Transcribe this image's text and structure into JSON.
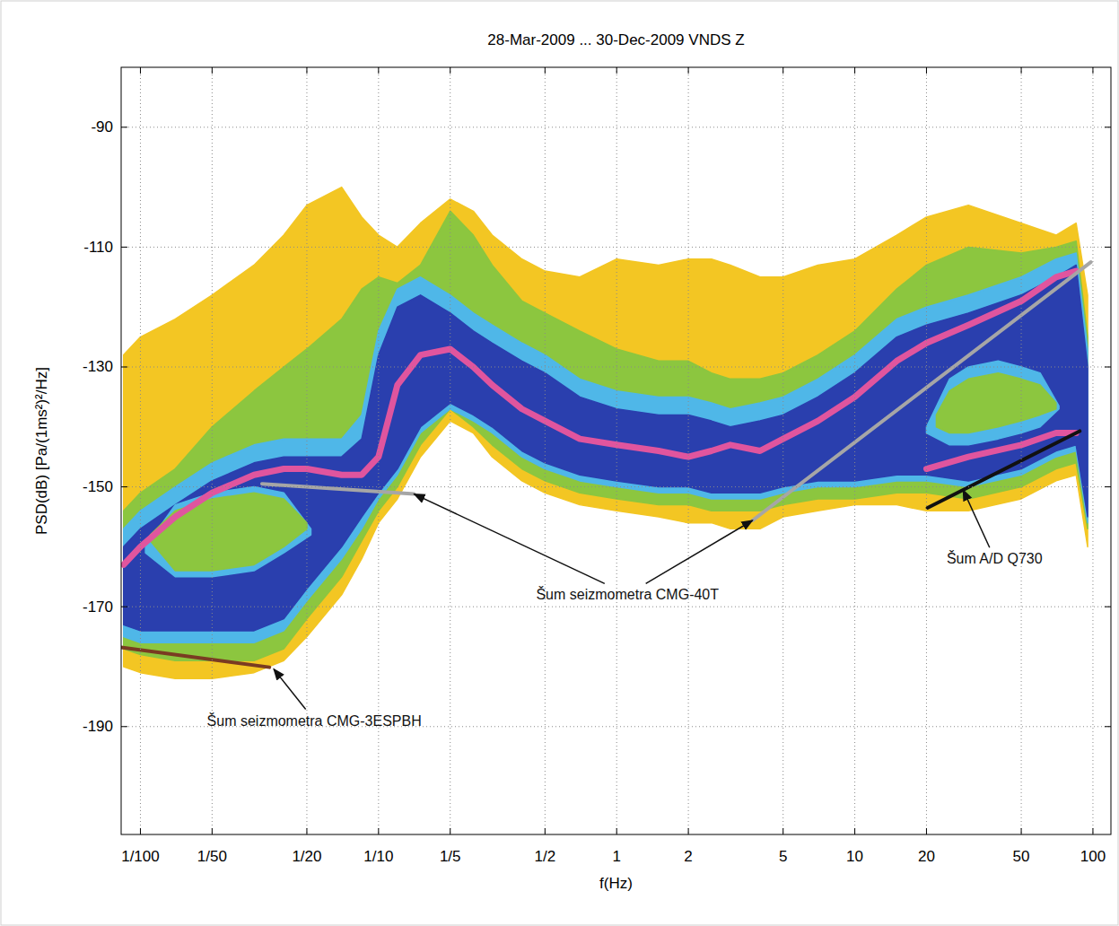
{
  "chart_data": {
    "type": "band",
    "title": "28-Mar-2009 ... 30-Dec-2009  VNDS  Z",
    "x_label": "f(Hz)",
    "y_label": "PSD(dB) [Pa/(1ms²)²/Hz]",
    "log": "x",
    "grid": true,
    "xlim": [
      0.0083,
      119
    ],
    "ylim": [
      -208,
      -80
    ],
    "xticks": [
      {
        "value": 0.01,
        "label": "1/100"
      },
      {
        "value": 0.02,
        "label": "1/50"
      },
      {
        "value": 0.05,
        "label": "1/20"
      },
      {
        "value": 0.1,
        "label": "1/10"
      },
      {
        "value": 0.2,
        "label": "1/5"
      },
      {
        "value": 0.5,
        "label": "1/2"
      },
      1,
      2,
      5,
      10,
      20,
      50,
      100
    ],
    "yticks": [
      -190,
      -170,
      -150,
      -130,
      -110,
      -90
    ],
    "x": [
      0.0085,
      0.01,
      0.014,
      0.02,
      0.03,
      0.04,
      0.05,
      0.07,
      0.085,
      0.1,
      0.12,
      0.15,
      0.2,
      0.25,
      0.3,
      0.4,
      0.5,
      0.7,
      1,
      1.5,
      2,
      2.5,
      3,
      4,
      5,
      7,
      10,
      15,
      20,
      30,
      50,
      70,
      85,
      95
    ],
    "series": [
      {
        "type": "band",
        "color": "#f3c623",
        "values": [
          -128,
          -125,
          -122,
          -118,
          -113,
          -108,
          -103,
          -100,
          -105,
          -108,
          -110,
          -106,
          -102,
          -104,
          -108,
          -112,
          -114,
          -115,
          -112,
          -113,
          -112,
          -112,
          -113,
          -115,
          -115,
          -113,
          -112,
          -108,
          -105,
          -103,
          -106,
          -108,
          -106,
          -118
        ],
        "lower": [
          -180,
          -181,
          -182,
          -182,
          -181,
          -179,
          -175,
          -168,
          -162,
          -156,
          -152,
          -145,
          -139,
          -141,
          -145,
          -149,
          -151,
          -153,
          -154,
          -155,
          -156,
          -156,
          -157,
          -157,
          -155,
          -154,
          -153,
          -153,
          -154,
          -154,
          -152,
          -149,
          -148,
          -160
        ]
      },
      {
        "type": "band",
        "color": "#8cc63f",
        "values": [
          -154,
          -151,
          -147,
          -140,
          -134,
          -130,
          -127,
          -122,
          -117,
          -115,
          -116,
          -113,
          -104,
          -108,
          -113,
          -119,
          -121,
          -124,
          -127,
          -129,
          -129,
          -131,
          -132,
          -132,
          -131,
          -128,
          -124,
          -117,
          -113,
          -110,
          -111,
          -110,
          -109,
          -125
        ],
        "lower": [
          -177,
          -178,
          -179,
          -179,
          -179,
          -177,
          -172,
          -165,
          -159,
          -154,
          -150,
          -143,
          -137,
          -140,
          -143,
          -147,
          -149,
          -151,
          -152,
          -153,
          -153,
          -154,
          -154,
          -154,
          -153,
          -152,
          -152,
          -151,
          -151,
          -152,
          -150,
          -147,
          -146,
          -157
        ]
      },
      {
        "type": "band",
        "color": "#4fb7e8",
        "values": [
          -157,
          -154,
          -150,
          -146,
          -143,
          -142,
          -142,
          -142,
          -138,
          -124,
          -117,
          -115,
          -118,
          -121,
          -123,
          -126,
          -128,
          -132,
          -134,
          -135,
          -135,
          -136,
          -137,
          -136,
          -135,
          -132,
          -128,
          -122,
          -120,
          -118,
          -115,
          -112,
          -111,
          -127
        ],
        "lower": [
          -175,
          -176,
          -176,
          -176,
          -176,
          -174,
          -169,
          -162,
          -157,
          -152,
          -148,
          -141,
          -137,
          -139,
          -141,
          -145,
          -147,
          -149,
          -150,
          -151,
          -151,
          -152,
          -152,
          -152,
          -151,
          -150,
          -150,
          -149,
          -149,
          -150,
          -148,
          -145,
          -144,
          -156
        ]
      },
      {
        "type": "band",
        "color": "#2a3fae",
        "values": [
          -160,
          -157,
          -153,
          -149,
          -146,
          -145,
          -145,
          -145,
          -142,
          -128,
          -120,
          -118,
          -121,
          -124,
          -126,
          -129,
          -131,
          -135,
          -137,
          -138,
          -138,
          -139,
          -140,
          -139,
          -138,
          -135,
          -131,
          -125,
          -123,
          -121,
          -118,
          -115,
          -113,
          -130
        ],
        "lower": [
          -173,
          -174,
          -174,
          -174,
          -174,
          -172,
          -167,
          -160,
          -155,
          -151,
          -147,
          -140,
          -136,
          -138,
          -140,
          -144,
          -146,
          -148,
          -149,
          -150,
          -150,
          -151,
          -151,
          -151,
          -150,
          -149,
          -149,
          -148,
          -148,
          -149,
          -147,
          -144,
          -143,
          -155
        ]
      },
      {
        "type": "band",
        "color": "#4fb7e8",
        "x": [
          0.0105,
          0.014,
          0.02,
          0.03,
          0.04,
          0.052
        ],
        "values": [
          -160,
          -153,
          -151,
          -150,
          -151,
          -157
        ],
        "lower": [
          -161,
          -165,
          -165,
          -164,
          -161,
          -158
        ]
      },
      {
        "type": "band",
        "color": "#8cc63f",
        "x": [
          0.011,
          0.014,
          0.02,
          0.03,
          0.04,
          0.05
        ],
        "values": [
          -158,
          -154,
          -152,
          -151,
          -152,
          -156
        ],
        "lower": [
          -159,
          -164,
          -164,
          -163,
          -160,
          -157
        ]
      },
      {
        "type": "band",
        "color": "#4fb7e8",
        "x": [
          20,
          25,
          30,
          40,
          50,
          60,
          72
        ],
        "values": [
          -140,
          -132,
          -130,
          -129,
          -130,
          -131,
          -136.5
        ],
        "lower": [
          -141,
          -143,
          -143,
          -142,
          -141,
          -140,
          -137
        ]
      },
      {
        "type": "band",
        "color": "#8cc63f",
        "x": [
          22,
          25,
          30,
          40,
          50,
          60,
          70
        ],
        "values": [
          -138,
          -134,
          -132,
          -131,
          -132,
          -133,
          -136
        ],
        "lower": [
          -140,
          -141,
          -141,
          -140,
          -139,
          -138,
          -137
        ]
      },
      {
        "type": "line",
        "color": "#e0559e",
        "line_style": "thick",
        "values": [
          -163,
          -160,
          -155,
          -151,
          -148,
          -147,
          -147,
          -148,
          -148,
          -145,
          -133,
          -128,
          -127,
          -130,
          -133,
          -137,
          -139,
          -142,
          -143,
          -144,
          -145,
          -144,
          -143,
          -144,
          -142,
          -139,
          -135,
          -129,
          -126,
          -123,
          -119,
          -115,
          -114,
          null
        ]
      },
      {
        "type": "line",
        "color": "#e0559e",
        "line_style": "thick",
        "x": [
          20,
          30,
          50,
          70,
          85
        ],
        "values": [
          -147,
          -145,
          -143,
          -141,
          -141
        ]
      },
      {
        "type": "line",
        "color": "#a6a6a6",
        "line_style": "solid",
        "x": [
          0.0324,
          0.141
        ],
        "values": [
          -149.5,
          -151.2
        ]
      },
      {
        "type": "line",
        "color": "#a6a6a6",
        "line_style": "solid",
        "x": [
          3.72,
          98
        ],
        "values": [
          -155.6,
          -112.5
        ]
      },
      {
        "type": "line",
        "color": "#7a3b22",
        "line_style": "solid",
        "x": [
          0.0083,
          0.0348
        ],
        "values": [
          -176.8,
          -180.1
        ]
      },
      {
        "type": "line",
        "color": "#111111",
        "line_style": "solid",
        "x": [
          20.2,
          88
        ],
        "values": [
          -153.5,
          -140.7
        ]
      }
    ],
    "annotations": [
      {
        "text": "Šum seizmometra  CMG-40T",
        "x": 1.11,
        "y": -168,
        "targets": [
          [
            0.141,
            -151.2
          ],
          [
            3.72,
            -155.6
          ]
        ]
      },
      {
        "text": "Šum A/D Q730",
        "x": 38.6,
        "y": -162,
        "targets": [
          [
            28.5,
            -150.5
          ]
        ]
      },
      {
        "text": "Šum seizmometra  CMG-3ESPBH",
        "x": 0.0537,
        "y": -189,
        "targets": [
          [
            0.0363,
            -180.4
          ]
        ]
      }
    ]
  }
}
